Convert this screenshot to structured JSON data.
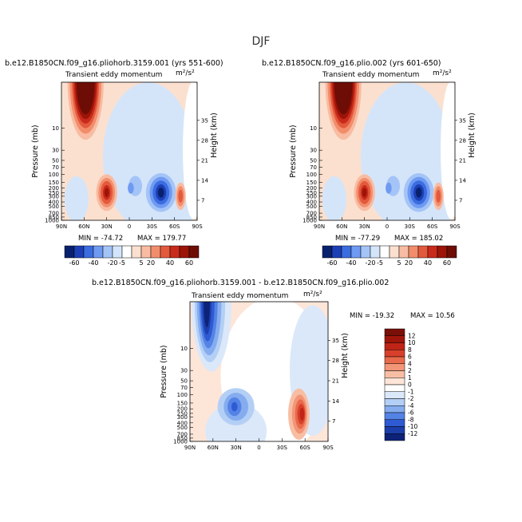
{
  "figure": {
    "title": "DJF"
  },
  "chart_data": [
    {
      "type": "heatmap",
      "title": "b.e12.B1850CN.f09_g16.pliohorb.3159.001 (yrs 551-600)",
      "subtitle": "Transient eddy momentum",
      "units": "m²/s²",
      "xlabel": "",
      "ylabel": "Pressure (mb)",
      "y2label": "Height (km)",
      "x_ticks": [
        "90N",
        "60N",
        "30N",
        "0",
        "30S",
        "60S",
        "90S"
      ],
      "y_ticks": [
        "10",
        "30",
        "50",
        "70",
        "100",
        "150",
        "200",
        "250",
        "300",
        "400",
        "500",
        "700",
        "850",
        "1000"
      ],
      "y2_ticks": [
        "35",
        "28",
        "21",
        "14",
        "7"
      ],
      "min_label": "MIN = -74.72",
      "max_label": "MAX = 179.77",
      "levels": [
        -60,
        -40,
        -20,
        -5,
        5,
        20,
        40,
        60
      ],
      "features": [
        {
          "lat": 55,
          "pressure": 1,
          "value": 179.77,
          "desc": "NH stratospheric maximum"
        },
        {
          "lat": 30,
          "pressure": 250,
          "value": 60,
          "desc": "NH subtropical jet eddy maximum"
        },
        {
          "lat": -43,
          "pressure": 250,
          "value": -74.72,
          "desc": "SH minimum"
        },
        {
          "lat": -68,
          "pressure": 300,
          "value": 40,
          "desc": "SH high-latitude maximum"
        }
      ]
    },
    {
      "type": "heatmap",
      "title": "b.e12.B1850CN.f09_g16.plio.002 (yrs 601-650)",
      "subtitle": "Transient eddy momentum",
      "units": "m²/s²",
      "xlabel": "",
      "ylabel": "Pressure (mb)",
      "y2label": "Height (km)",
      "x_ticks": [
        "90N",
        "60N",
        "30N",
        "0",
        "30S",
        "60S",
        "90S"
      ],
      "y_ticks": [
        "10",
        "30",
        "50",
        "70",
        "100",
        "150",
        "200",
        "250",
        "300",
        "400",
        "500",
        "700",
        "850",
        "1000"
      ],
      "y2_ticks": [
        "35",
        "28",
        "21",
        "14",
        "7"
      ],
      "min_label": "MIN = -77.29",
      "max_label": "MAX = 185.02",
      "levels": [
        -60,
        -40,
        -20,
        -5,
        5,
        20,
        40,
        60
      ],
      "features": [
        {
          "lat": 55,
          "pressure": 1,
          "value": 185.02,
          "desc": "NH stratospheric maximum"
        },
        {
          "lat": 30,
          "pressure": 250,
          "value": 60,
          "desc": "NH subtropical jet eddy maximum"
        },
        {
          "lat": -43,
          "pressure": 250,
          "value": -77.29,
          "desc": "SH minimum"
        },
        {
          "lat": -68,
          "pressure": 300,
          "value": 40,
          "desc": "SH high-latitude maximum"
        }
      ]
    },
    {
      "type": "heatmap",
      "title": "b.e12.B1850CN.f09_g16.pliohorb.3159.001 - b.e12.B1850CN.f09_g16.plio.002",
      "subtitle": "Transient eddy momentum",
      "units": "m²/s²",
      "xlabel": "",
      "ylabel": "Pressure (mb)",
      "y2label": "Height (km)",
      "x_ticks": [
        "90N",
        "60N",
        "30N",
        "0",
        "30S",
        "60S",
        "90S"
      ],
      "y_ticks": [
        "10",
        "30",
        "50",
        "70",
        "100",
        "150",
        "200",
        "250",
        "300",
        "400",
        "500",
        "700",
        "850",
        "1000"
      ],
      "y2_ticks": [
        "35",
        "28",
        "21",
        "14",
        "7"
      ],
      "min_label": "MIN = -19.32",
      "max_label": "MAX = 10.56",
      "levels": [
        -12,
        -10,
        -8,
        -6,
        -4,
        -2,
        -1,
        0,
        1,
        2,
        4,
        6,
        8,
        10,
        12
      ],
      "features": [
        {
          "lat": 65,
          "pressure": 2,
          "value": -19.32,
          "desc": "NH stratospheric minimum"
        },
        {
          "lat": 30,
          "pressure": 180,
          "value": -6,
          "desc": "NH mid-troposphere negative"
        },
        {
          "lat": -55,
          "pressure": 260,
          "value": 10.56,
          "desc": "SH midlatitude maximum"
        }
      ]
    }
  ],
  "colorbars": {
    "full": {
      "labels": [
        "-60",
        "-40",
        "-20",
        "-5",
        "5",
        "20",
        "40",
        "60"
      ],
      "colors": [
        "#08216e",
        "#1d3fb5",
        "#3b6ce0",
        "#6f9af2",
        "#a4c4f7",
        "#d4e5fa",
        "#ffffff",
        "#fbe0cf",
        "#f8bca3",
        "#f28d6c",
        "#e3593c",
        "#c82a1b",
        "#9c1408",
        "#6e0d05"
      ]
    },
    "diff": {
      "labels": [
        "12",
        "10",
        "8",
        "6",
        "4",
        "2",
        "1",
        "0",
        "-1",
        "-2",
        "-4",
        "-6",
        "-8",
        "-10",
        "-12"
      ],
      "colors": [
        "#7a0f07",
        "#a0150a",
        "#c02416",
        "#d8402b",
        "#e86a4c",
        "#f39577",
        "#f8bea4",
        "#fde5d8",
        "#ffffff",
        "#dbe8fa",
        "#b4cff5",
        "#85acef",
        "#5483e6",
        "#2e5bd3",
        "#1b3eaa",
        "#0d2378"
      ]
    }
  }
}
